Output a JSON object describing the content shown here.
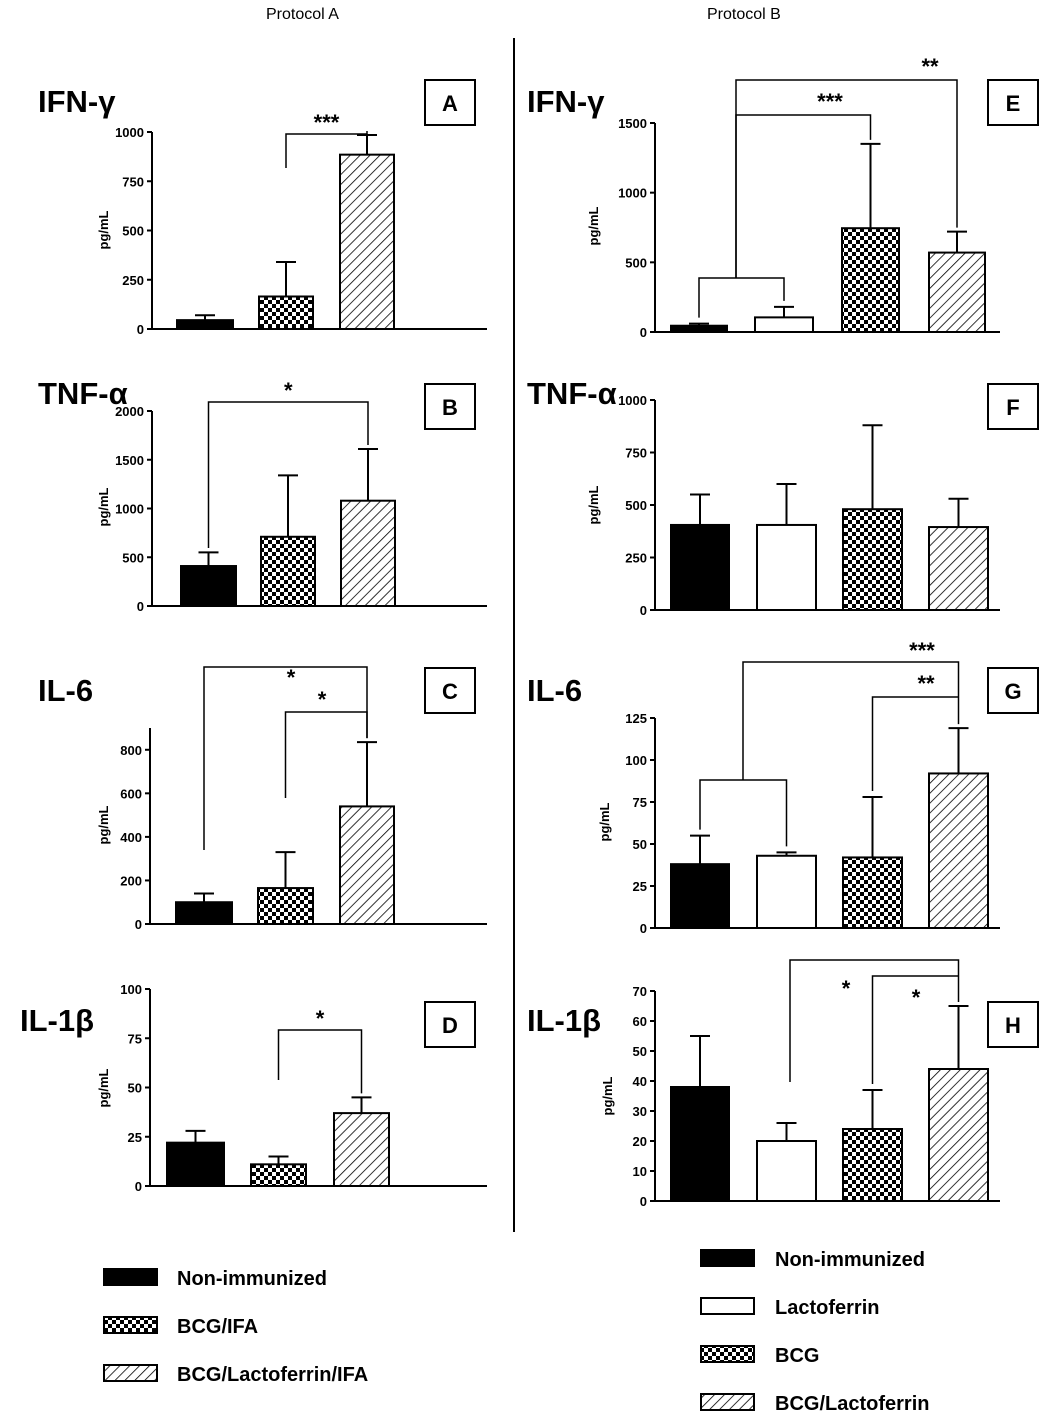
{
  "headers": {
    "left": "Protocol A",
    "right": "Protocol B"
  },
  "y_label": "pg/mL",
  "legend_a": [
    {
      "label": "Non-immunized",
      "pattern": "solid"
    },
    {
      "label": "BCG/IFA",
      "pattern": "check"
    },
    {
      "label": "BCG/Lactoferrin/IFA",
      "pattern": "hatch"
    }
  ],
  "legend_b": [
    {
      "label": "Non-immunized",
      "pattern": "solid"
    },
    {
      "label": "Lactoferrin",
      "pattern": "open"
    },
    {
      "label": "BCG",
      "pattern": "check"
    },
    {
      "label": "BCG/Lactoferrin",
      "pattern": "hatch"
    }
  ],
  "colors": {
    "ink": "#000000",
    "background": "#ffffff"
  },
  "chart_data": [
    {
      "panel": "A",
      "protocol": "Protocol A",
      "title": "IFN-γ",
      "type": "bar",
      "categories": [
        "Non-immunized",
        "BCG/IFA",
        "BCG/Lactoferrin/IFA"
      ],
      "values": [
        45,
        165,
        885
      ],
      "errors": [
        25,
        175,
        100
      ],
      "ylabel": "pg/mL",
      "ylim": [
        0,
        1000
      ],
      "yticks": [
        0,
        250,
        500,
        750,
        1000
      ],
      "significance": [
        {
          "from": [
            1
          ],
          "to": 2,
          "label": "***"
        }
      ]
    },
    {
      "panel": "B",
      "protocol": "Protocol A",
      "title": "TNF-α",
      "type": "bar",
      "categories": [
        "Non-immunized",
        "BCG/IFA",
        "BCG/Lactoferrin/IFA"
      ],
      "values": [
        410,
        710,
        1080
      ],
      "errors": [
        140,
        630,
        530
      ],
      "ylabel": "pg/mL",
      "ylim": [
        0,
        2000
      ],
      "yticks": [
        0,
        500,
        1000,
        1500,
        2000
      ],
      "significance": [
        {
          "from": [
            0
          ],
          "to": 2,
          "label": "*"
        }
      ]
    },
    {
      "panel": "C",
      "protocol": "Protocol A",
      "title": "IL-6",
      "type": "bar",
      "categories": [
        "Non-immunized",
        "BCG/IFA",
        "BCG/Lactoferrin/IFA"
      ],
      "values": [
        100,
        165,
        540
      ],
      "errors": [
        40,
        165,
        295
      ],
      "ylabel": "pg/mL",
      "ylim": [
        0,
        900
      ],
      "yticks": [
        0,
        200,
        400,
        600,
        800
      ],
      "significance": [
        {
          "from": [
            0
          ],
          "to": 2,
          "label": "*"
        },
        {
          "from": [
            1
          ],
          "to": 2,
          "label": "*"
        }
      ]
    },
    {
      "panel": "D",
      "protocol": "Protocol A",
      "title": "IL-1β",
      "type": "bar",
      "categories": [
        "Non-immunized",
        "BCG/IFA",
        "BCG/Lactoferrin/IFA"
      ],
      "values": [
        22,
        11,
        37
      ],
      "errors": [
        6,
        4,
        8
      ],
      "ylabel": "pg/mL",
      "ylim": [
        0,
        100
      ],
      "yticks": [
        0,
        25,
        50,
        75,
        100
      ],
      "significance": [
        {
          "from": [
            1
          ],
          "to": 2,
          "label": "*"
        }
      ]
    },
    {
      "panel": "E",
      "protocol": "Protocol B",
      "title": "IFN-γ",
      "type": "bar",
      "categories": [
        "Non-immunized",
        "Lactoferrin",
        "BCG",
        "BCG/Lactoferrin"
      ],
      "values": [
        45,
        105,
        745,
        570
      ],
      "errors": [
        15,
        75,
        605,
        150
      ],
      "ylabel": "pg/mL",
      "ylim": [
        0,
        1500
      ],
      "yticks": [
        0,
        500,
        1000,
        1500
      ],
      "significance": [
        {
          "from": [
            0,
            1
          ],
          "to": 2,
          "label": "***"
        },
        {
          "from": [
            0,
            1
          ],
          "to": 3,
          "label": "**"
        }
      ]
    },
    {
      "panel": "F",
      "protocol": "Protocol B",
      "title": "TNF-α",
      "type": "bar",
      "categories": [
        "Non-immunized",
        "Lactoferrin",
        "BCG",
        "BCG/Lactoferrin"
      ],
      "values": [
        405,
        405,
        480,
        395
      ],
      "errors": [
        145,
        195,
        400,
        135
      ],
      "ylabel": "pg/mL",
      "ylim": [
        0,
        1000
      ],
      "yticks": [
        0,
        250,
        500,
        750,
        1000
      ],
      "significance": []
    },
    {
      "panel": "G",
      "protocol": "Protocol B",
      "title": "IL-6",
      "type": "bar",
      "categories": [
        "Non-immunized",
        "Lactoferrin",
        "BCG",
        "BCG/Lactoferrin"
      ],
      "values": [
        38,
        43,
        42,
        92
      ],
      "errors": [
        17,
        2,
        36,
        27
      ],
      "ylabel": "pg/mL",
      "ylim": [
        0,
        125
      ],
      "yticks": [
        0,
        25,
        50,
        75,
        100,
        125
      ],
      "significance": [
        {
          "from": [
            0,
            1
          ],
          "to": 3,
          "label": "***"
        },
        {
          "from": [
            2
          ],
          "to": 3,
          "label": "**"
        }
      ]
    },
    {
      "panel": "H",
      "protocol": "Protocol B",
      "title": "IL-1β",
      "type": "bar",
      "categories": [
        "Non-immunized",
        "Lactoferrin",
        "BCG",
        "BCG/Lactoferrin"
      ],
      "values": [
        38,
        20,
        24,
        44
      ],
      "errors": [
        17,
        6,
        13,
        21
      ],
      "ylabel": "pg/mL",
      "ylim": [
        0,
        70
      ],
      "yticks": [
        0,
        10,
        20,
        30,
        40,
        50,
        60,
        70
      ],
      "significance": [
        {
          "from": [
            1
          ],
          "to": 3,
          "label": "*"
        },
        {
          "from": [
            2
          ],
          "to": 3,
          "label": "*"
        }
      ]
    }
  ]
}
